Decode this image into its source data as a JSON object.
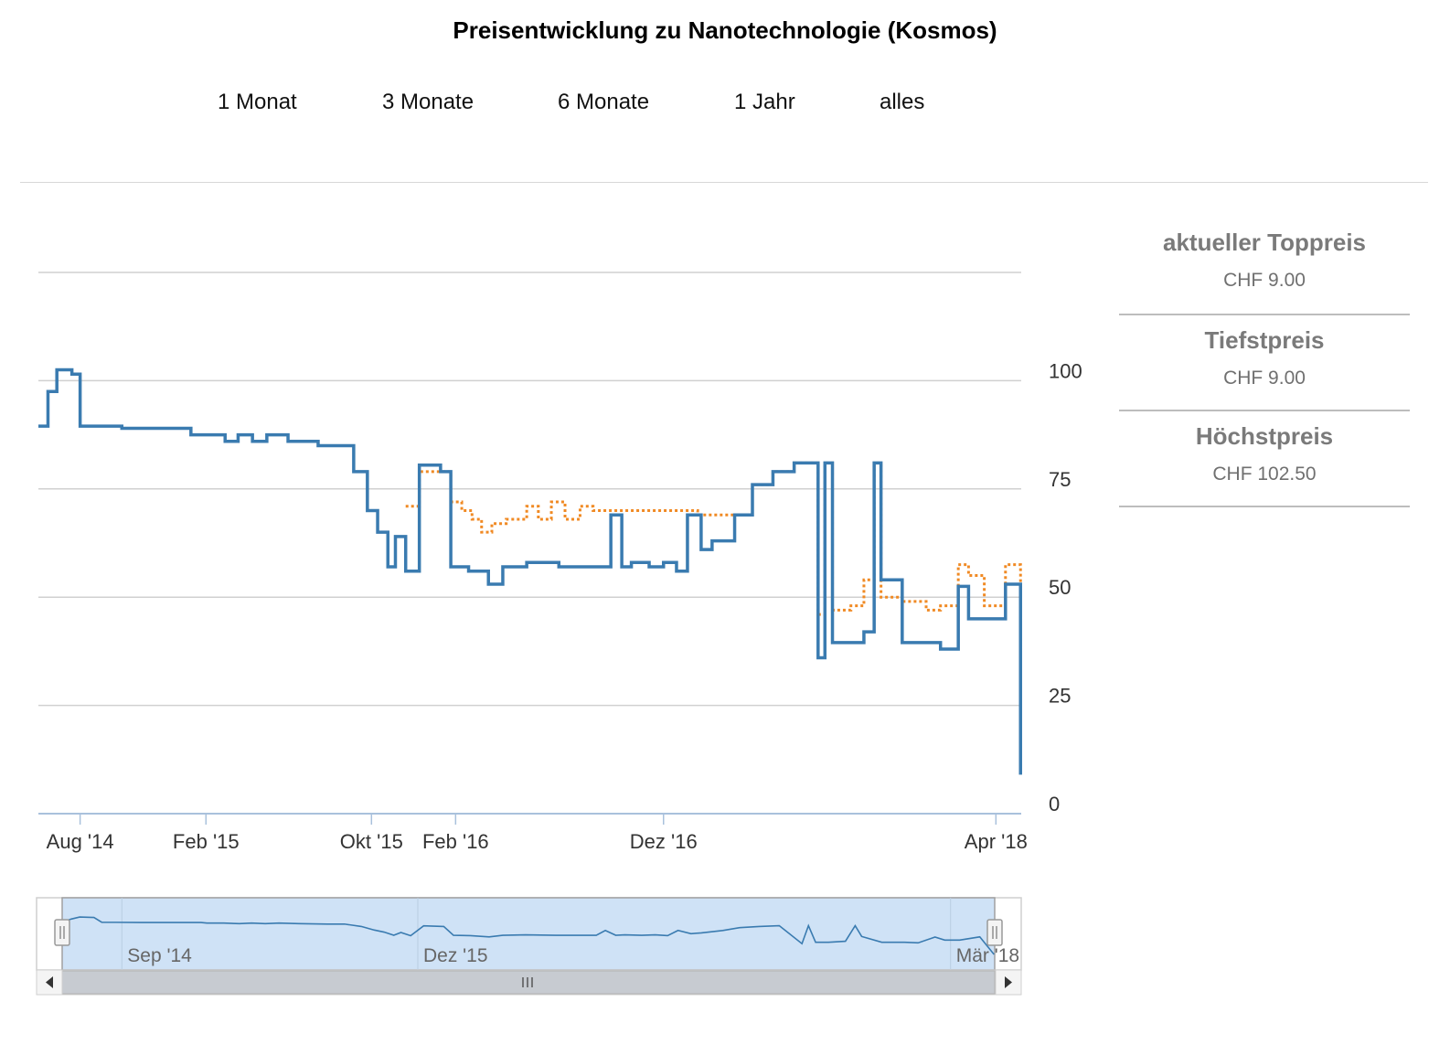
{
  "title": "Preisentwicklung zu Nanotechnologie (Kosmos)",
  "range_buttons": [
    "1 Monat",
    "3 Monate",
    "6 Monate",
    "1 Jahr",
    "alles"
  ],
  "stats": [
    {
      "label": "aktueller Toppreis",
      "value": "CHF 9.00"
    },
    {
      "label": "Tiefstpreis",
      "value": "CHF 9.00"
    },
    {
      "label": "Höchstpreis",
      "value": "CHF 102.50"
    }
  ],
  "colors": {
    "series_1": "#3a7bb0",
    "series_2": "#f08a24",
    "navigator_fill": "#cfe2f6",
    "grid": "#d0d0d0",
    "axis": "#a9c1dc"
  },
  "icons": {
    "scroll_left": "triangle-left-icon",
    "scroll_right": "triangle-right-icon",
    "handle": "grip-icon"
  },
  "chart_data": {
    "type": "line",
    "step": true,
    "y_ticks": [
      0,
      25,
      50,
      75,
      100
    ],
    "ylim": [
      0,
      125
    ],
    "x_range": [
      "2014-06-01",
      "2018-05-08"
    ],
    "x_ticks": [
      {
        "date": "2014-08-01",
        "label": "Aug '14"
      },
      {
        "date": "2015-02-01",
        "label": "Feb '15"
      },
      {
        "date": "2015-10-01",
        "label": "Okt '15"
      },
      {
        "date": "2016-02-01",
        "label": "Feb '16"
      },
      {
        "date": "2016-12-01",
        "label": "Dez '16"
      },
      {
        "date": "2018-04-01",
        "label": "Apr '18"
      }
    ],
    "grid": true,
    "series": [
      {
        "points": [
          [
            "2014-06-01",
            89.5
          ],
          [
            "2014-06-15",
            97.5
          ],
          [
            "2014-06-28",
            102.5
          ],
          [
            "2014-07-20",
            101.5
          ],
          [
            "2014-08-01",
            89.5
          ],
          [
            "2014-10-01",
            89.0
          ],
          [
            "2015-01-01",
            89.0
          ],
          [
            "2015-01-10",
            87.5
          ],
          [
            "2015-02-05",
            87.5
          ],
          [
            "2015-03-01",
            86.0
          ],
          [
            "2015-03-20",
            87.5
          ],
          [
            "2015-04-10",
            86.0
          ],
          [
            "2015-05-01",
            87.5
          ],
          [
            "2015-06-01",
            86.0
          ],
          [
            "2015-07-15",
            85.0
          ],
          [
            "2015-08-10",
            85.0
          ],
          [
            "2015-09-05",
            79.0
          ],
          [
            "2015-09-25",
            70.0
          ],
          [
            "2015-10-10",
            65.0
          ],
          [
            "2015-10-25",
            57.0
          ],
          [
            "2015-11-05",
            64.0
          ],
          [
            "2015-11-20",
            56.0
          ],
          [
            "2015-12-10",
            80.5
          ],
          [
            "2016-01-10",
            79.0
          ],
          [
            "2016-01-25",
            57.0
          ],
          [
            "2016-02-20",
            56.0
          ],
          [
            "2016-03-20",
            53.0
          ],
          [
            "2016-04-10",
            57.0
          ],
          [
            "2016-05-15",
            58.0
          ],
          [
            "2016-07-01",
            57.0
          ],
          [
            "2016-09-01",
            57.0
          ],
          [
            "2016-09-15",
            69.0
          ],
          [
            "2016-10-01",
            57.0
          ],
          [
            "2016-10-15",
            58.0
          ],
          [
            "2016-11-10",
            57.0
          ],
          [
            "2016-12-01",
            58.0
          ],
          [
            "2016-12-20",
            56.0
          ],
          [
            "2017-01-05",
            69.0
          ],
          [
            "2017-01-25",
            61.0
          ],
          [
            "2017-02-10",
            63.0
          ],
          [
            "2017-03-15",
            69.0
          ],
          [
            "2017-04-10",
            76.0
          ],
          [
            "2017-05-10",
            79.0
          ],
          [
            "2017-06-10",
            81.0
          ],
          [
            "2017-07-15",
            36.0
          ],
          [
            "2017-07-25",
            81.0
          ],
          [
            "2017-08-05",
            39.5
          ],
          [
            "2017-08-25",
            39.5
          ],
          [
            "2017-09-20",
            42.0
          ],
          [
            "2017-10-05",
            81.0
          ],
          [
            "2017-10-15",
            54.0
          ],
          [
            "2017-11-15",
            39.5
          ],
          [
            "2017-12-20",
            39.5
          ],
          [
            "2018-01-10",
            38.0
          ],
          [
            "2018-02-05",
            52.5
          ],
          [
            "2018-02-20",
            45.0
          ],
          [
            "2018-03-15",
            45.0
          ],
          [
            "2018-04-15",
            53.0
          ],
          [
            "2018-05-07",
            9.0
          ]
        ]
      },
      {
        "dashed": true,
        "points": [
          [
            "2015-11-20",
            71.0
          ],
          [
            "2015-12-10",
            79.0
          ],
          [
            "2016-01-25",
            72.0
          ],
          [
            "2016-02-10",
            70.0
          ],
          [
            "2016-02-25",
            68.0
          ],
          [
            "2016-03-10",
            65.0
          ],
          [
            "2016-03-25",
            67.0
          ],
          [
            "2016-04-15",
            68.0
          ],
          [
            "2016-05-15",
            71.0
          ],
          [
            "2016-06-01",
            68.0
          ],
          [
            "2016-06-20",
            72.0
          ],
          [
            "2016-07-10",
            68.0
          ],
          [
            "2016-08-01",
            71.0
          ],
          [
            "2016-08-20",
            70.0
          ],
          [
            "2016-09-15",
            70.0
          ],
          [
            "2017-01-20",
            69.0
          ],
          [
            "2017-03-15",
            69.0
          ],
          [
            "2017-04-10",
            76.0
          ],
          [
            "2017-05-10",
            79.0
          ],
          [
            "2017-06-10",
            81.0
          ],
          [
            "2017-07-15",
            46.0
          ],
          [
            "2017-07-25",
            81.0
          ],
          [
            "2017-08-05",
            47.0
          ],
          [
            "2017-09-01",
            48.0
          ],
          [
            "2017-09-20",
            54.0
          ],
          [
            "2017-10-05",
            81.0
          ],
          [
            "2017-10-15",
            50.0
          ],
          [
            "2017-11-15",
            49.0
          ],
          [
            "2017-12-20",
            47.0
          ],
          [
            "2018-01-10",
            48.0
          ],
          [
            "2018-02-05",
            57.5
          ],
          [
            "2018-02-20",
            55.0
          ],
          [
            "2018-03-15",
            48.0
          ],
          [
            "2018-04-15",
            57.5
          ],
          [
            "2018-05-07",
            15.0
          ]
        ]
      }
    ],
    "navigator": {
      "x_ticks": [
        {
          "date": "2014-09-01",
          "label": "Sep '14"
        },
        {
          "date": "2015-12-01",
          "label": "Dez '15"
        },
        {
          "date": "2018-03-01",
          "label": "Mär '18"
        }
      ],
      "selection": [
        "2014-06-01",
        "2018-05-08"
      ]
    }
  }
}
